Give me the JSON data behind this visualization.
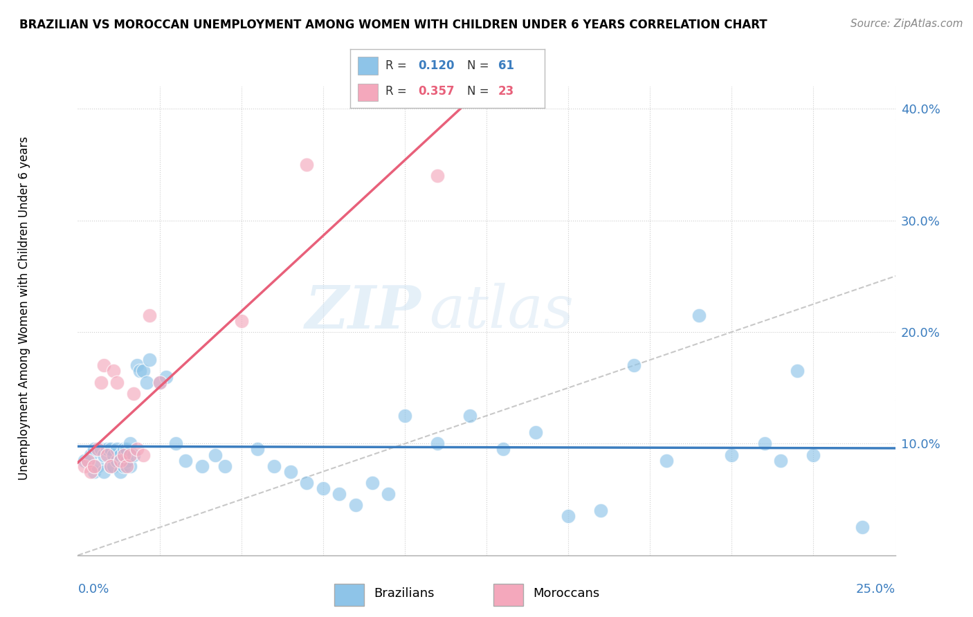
{
  "title": "BRAZILIAN VS MOROCCAN UNEMPLOYMENT AMONG WOMEN WITH CHILDREN UNDER 6 YEARS CORRELATION CHART",
  "source": "Source: ZipAtlas.com",
  "ylabel": "Unemployment Among Women with Children Under 6 years",
  "blue_color": "#8ec4e8",
  "pink_color": "#f4a8bc",
  "blue_line_color": "#3b7dbf",
  "pink_line_color": "#e8607a",
  "diagonal_color": "#c8c8c8",
  "xlim": [
    0.0,
    0.25
  ],
  "ylim": [
    0.0,
    0.42
  ],
  "ytick_positions": [
    0.0,
    0.1,
    0.2,
    0.3,
    0.4
  ],
  "ytick_labels": [
    "",
    "10.0%",
    "20.0%",
    "30.0%",
    "40.0%"
  ],
  "xtick_left_label": "0.0%",
  "xtick_right_label": "25.0%",
  "r_blue": "0.120",
  "n_blue": "61",
  "r_pink": "0.357",
  "n_pink": "23",
  "watermark_zip": "ZIP",
  "watermark_atlas": "atlas",
  "brazilians_x": [
    0.002,
    0.004,
    0.005,
    0.005,
    0.006,
    0.007,
    0.008,
    0.008,
    0.009,
    0.01,
    0.01,
    0.011,
    0.011,
    0.012,
    0.012,
    0.013,
    0.013,
    0.014,
    0.014,
    0.015,
    0.015,
    0.016,
    0.016,
    0.017,
    0.018,
    0.019,
    0.02,
    0.021,
    0.022,
    0.025,
    0.027,
    0.03,
    0.033,
    0.038,
    0.042,
    0.045,
    0.055,
    0.06,
    0.065,
    0.07,
    0.075,
    0.08,
    0.085,
    0.09,
    0.095,
    0.1,
    0.11,
    0.12,
    0.13,
    0.14,
    0.15,
    0.16,
    0.17,
    0.18,
    0.19,
    0.2,
    0.21,
    0.215,
    0.22,
    0.225,
    0.24
  ],
  "brazilians_y": [
    0.085,
    0.09,
    0.075,
    0.095,
    0.08,
    0.095,
    0.075,
    0.09,
    0.095,
    0.08,
    0.095,
    0.09,
    0.08,
    0.085,
    0.095,
    0.075,
    0.09,
    0.08,
    0.095,
    0.085,
    0.095,
    0.08,
    0.1,
    0.09,
    0.17,
    0.165,
    0.165,
    0.155,
    0.175,
    0.155,
    0.16,
    0.1,
    0.085,
    0.08,
    0.09,
    0.08,
    0.095,
    0.08,
    0.075,
    0.065,
    0.06,
    0.055,
    0.045,
    0.065,
    0.055,
    0.125,
    0.1,
    0.125,
    0.095,
    0.11,
    0.035,
    0.04,
    0.17,
    0.085,
    0.215,
    0.09,
    0.1,
    0.085,
    0.165,
    0.09,
    0.025
  ],
  "moroccans_x": [
    0.002,
    0.003,
    0.004,
    0.005,
    0.006,
    0.007,
    0.008,
    0.009,
    0.01,
    0.011,
    0.012,
    0.013,
    0.014,
    0.015,
    0.016,
    0.017,
    0.018,
    0.02,
    0.022,
    0.025,
    0.05,
    0.07,
    0.11
  ],
  "moroccans_y": [
    0.08,
    0.085,
    0.075,
    0.08,
    0.095,
    0.155,
    0.17,
    0.09,
    0.08,
    0.165,
    0.155,
    0.085,
    0.09,
    0.08,
    0.09,
    0.145,
    0.095,
    0.09,
    0.215,
    0.155,
    0.21,
    0.35,
    0.34
  ]
}
